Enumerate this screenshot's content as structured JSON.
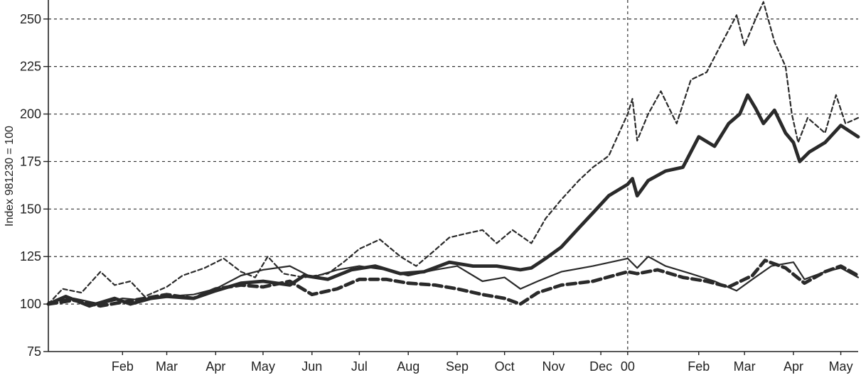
{
  "chart_data": {
    "type": "line",
    "title": "",
    "xlabel": "",
    "ylabel": "Index 981230 = 100",
    "ylim": [
      75,
      260
    ],
    "yticks": [
      75,
      100,
      125,
      150,
      175,
      200,
      225,
      250
    ],
    "xlim": [
      "1998-12-30",
      "2000-05-26"
    ],
    "xticks": [
      {
        "label": "Feb",
        "date": "1999-02-15"
      },
      {
        "label": "Mar",
        "date": "1999-03-15"
      },
      {
        "label": "Apr",
        "date": "1999-04-15"
      },
      {
        "label": "May",
        "date": "1999-05-15"
      },
      {
        "label": "Jun",
        "date": "1999-06-15"
      },
      {
        "label": "Jul",
        "date": "1999-07-15"
      },
      {
        "label": "Aug",
        "date": "1999-08-15"
      },
      {
        "label": "Sep",
        "date": "1999-09-15"
      },
      {
        "label": "Oct",
        "date": "1999-10-15"
      },
      {
        "label": "Nov",
        "date": "1999-11-15"
      },
      {
        "label": "Dec",
        "date": "1999-12-15"
      },
      {
        "label": "00",
        "date": "2000-01-01"
      },
      {
        "label": "Feb",
        "date": "2000-02-15"
      },
      {
        "label": "Mar",
        "date": "2000-03-15"
      },
      {
        "label": "Apr",
        "date": "2000-04-15"
      },
      {
        "label": "May",
        "date": "2000-05-15"
      }
    ],
    "vline": "2000-01-01",
    "grid": true,
    "series": [
      {
        "style": "thin-dashed",
        "color": "#2a2a2a",
        "points": [
          [
            "1998-12-30",
            100
          ],
          [
            "1999-01-08",
            108
          ],
          [
            "1999-01-20",
            106
          ],
          [
            "1999-02-01",
            117
          ],
          [
            "1999-02-10",
            110
          ],
          [
            "1999-02-20",
            112
          ],
          [
            "1999-03-01",
            104
          ],
          [
            "1999-03-15",
            109
          ],
          [
            "1999-03-25",
            115
          ],
          [
            "1999-04-08",
            119
          ],
          [
            "1999-04-20",
            124
          ],
          [
            "1999-05-01",
            117
          ],
          [
            "1999-05-10",
            114
          ],
          [
            "1999-05-18",
            125
          ],
          [
            "1999-05-28",
            116
          ],
          [
            "1999-06-10",
            114
          ],
          [
            "1999-06-25",
            116
          ],
          [
            "1999-07-05",
            122
          ],
          [
            "1999-07-15",
            129
          ],
          [
            "1999-07-28",
            134
          ],
          [
            "1999-08-10",
            125
          ],
          [
            "1999-08-20",
            120
          ],
          [
            "1999-08-30",
            127
          ],
          [
            "1999-09-10",
            135
          ],
          [
            "1999-09-20",
            137
          ],
          [
            "1999-10-01",
            139
          ],
          [
            "1999-10-10",
            132
          ],
          [
            "1999-10-20",
            139
          ],
          [
            "1999-11-01",
            132
          ],
          [
            "1999-11-10",
            145
          ],
          [
            "1999-11-20",
            155
          ],
          [
            "1999-12-01",
            165
          ],
          [
            "1999-12-10",
            172
          ],
          [
            "1999-12-20",
            178
          ],
          [
            "2000-01-01",
            200
          ],
          [
            "2000-01-04",
            208
          ],
          [
            "2000-01-07",
            186
          ],
          [
            "2000-01-14",
            200
          ],
          [
            "2000-01-22",
            212
          ],
          [
            "2000-02-01",
            195
          ],
          [
            "2000-02-10",
            218
          ],
          [
            "2000-02-20",
            222
          ],
          [
            "2000-03-01",
            238
          ],
          [
            "2000-03-10",
            252
          ],
          [
            "2000-03-15",
            236
          ],
          [
            "2000-03-22",
            250
          ],
          [
            "2000-03-27",
            259
          ],
          [
            "2000-04-03",
            238
          ],
          [
            "2000-04-10",
            225
          ],
          [
            "2000-04-14",
            200
          ],
          [
            "2000-04-18",
            185
          ],
          [
            "2000-04-24",
            198
          ],
          [
            "2000-05-05",
            190
          ],
          [
            "2000-05-12",
            210
          ],
          [
            "2000-05-18",
            195
          ],
          [
            "2000-05-26",
            198
          ]
        ]
      },
      {
        "style": "thick-solid",
        "color": "#2a2a2a",
        "points": [
          [
            "1998-12-30",
            100
          ],
          [
            "1999-01-10",
            104
          ],
          [
            "1999-01-25",
            99
          ],
          [
            "1999-02-10",
            103
          ],
          [
            "1999-02-20",
            100
          ],
          [
            "1999-03-05",
            103
          ],
          [
            "1999-03-15",
            104
          ],
          [
            "1999-04-01",
            103
          ],
          [
            "1999-04-15",
            107
          ],
          [
            "1999-05-01",
            111
          ],
          [
            "1999-05-15",
            112
          ],
          [
            "1999-06-01",
            110
          ],
          [
            "1999-06-10",
            115
          ],
          [
            "1999-06-25",
            113
          ],
          [
            "1999-07-10",
            118
          ],
          [
            "1999-07-25",
            120
          ],
          [
            "1999-08-10",
            116
          ],
          [
            "1999-08-25",
            117
          ],
          [
            "1999-09-10",
            122
          ],
          [
            "1999-09-25",
            120
          ],
          [
            "1999-10-10",
            120
          ],
          [
            "1999-10-25",
            118
          ],
          [
            "1999-11-01",
            119
          ],
          [
            "1999-11-10",
            124
          ],
          [
            "1999-11-20",
            130
          ],
          [
            "1999-12-01",
            140
          ],
          [
            "1999-12-10",
            148
          ],
          [
            "1999-12-20",
            157
          ],
          [
            "2000-01-01",
            163
          ],
          [
            "2000-01-04",
            166
          ],
          [
            "2000-01-07",
            157
          ],
          [
            "2000-01-14",
            165
          ],
          [
            "2000-01-25",
            170
          ],
          [
            "2000-02-05",
            172
          ],
          [
            "2000-02-15",
            188
          ],
          [
            "2000-02-25",
            183
          ],
          [
            "2000-03-05",
            195
          ],
          [
            "2000-03-12",
            200
          ],
          [
            "2000-03-17",
            210
          ],
          [
            "2000-03-22",
            203
          ],
          [
            "2000-03-27",
            195
          ],
          [
            "2000-04-03",
            202
          ],
          [
            "2000-04-10",
            190
          ],
          [
            "2000-04-15",
            185
          ],
          [
            "2000-04-19",
            175
          ],
          [
            "2000-04-25",
            180
          ],
          [
            "2000-05-05",
            185
          ],
          [
            "2000-05-15",
            194
          ],
          [
            "2000-05-26",
            188
          ]
        ]
      },
      {
        "style": "thin-solid",
        "color": "#2a2a2a",
        "points": [
          [
            "1998-12-30",
            101
          ],
          [
            "1999-01-15",
            103
          ],
          [
            "1999-02-01",
            100
          ],
          [
            "1999-02-15",
            103
          ],
          [
            "1999-03-01",
            102
          ],
          [
            "1999-03-15",
            104
          ],
          [
            "1999-04-01",
            105
          ],
          [
            "1999-04-15",
            108
          ],
          [
            "1999-05-01",
            115
          ],
          [
            "1999-05-15",
            118
          ],
          [
            "1999-06-01",
            120
          ],
          [
            "1999-06-15",
            114
          ],
          [
            "1999-07-01",
            118
          ],
          [
            "1999-07-15",
            120
          ],
          [
            "1999-08-01",
            118
          ],
          [
            "1999-08-15",
            115
          ],
          [
            "1999-09-01",
            118
          ],
          [
            "1999-09-15",
            120
          ],
          [
            "1999-10-01",
            112
          ],
          [
            "1999-10-15",
            114
          ],
          [
            "1999-10-25",
            108
          ],
          [
            "1999-11-05",
            112
          ],
          [
            "1999-11-20",
            117
          ],
          [
            "1999-12-10",
            120
          ],
          [
            "2000-01-01",
            124
          ],
          [
            "2000-01-07",
            119
          ],
          [
            "2000-01-14",
            125
          ],
          [
            "2000-01-25",
            120
          ],
          [
            "2000-02-10",
            116
          ],
          [
            "2000-02-25",
            112
          ],
          [
            "2000-03-10",
            107
          ],
          [
            "2000-03-20",
            113
          ],
          [
            "2000-04-01",
            120
          ],
          [
            "2000-04-15",
            122
          ],
          [
            "2000-04-22",
            113
          ],
          [
            "2000-05-05",
            117
          ],
          [
            "2000-05-15",
            119
          ],
          [
            "2000-05-26",
            114
          ]
        ]
      },
      {
        "style": "thick-dashed",
        "color": "#2a2a2a",
        "points": [
          [
            "1998-12-30",
            100
          ],
          [
            "1999-01-15",
            102
          ],
          [
            "1999-02-01",
            99
          ],
          [
            "1999-02-15",
            101
          ],
          [
            "1999-03-01",
            103
          ],
          [
            "1999-03-15",
            105
          ],
          [
            "1999-04-01",
            103
          ],
          [
            "1999-04-15",
            108
          ],
          [
            "1999-05-01",
            110
          ],
          [
            "1999-05-15",
            109
          ],
          [
            "1999-06-01",
            112
          ],
          [
            "1999-06-15",
            105
          ],
          [
            "1999-07-01",
            108
          ],
          [
            "1999-07-15",
            113
          ],
          [
            "1999-08-01",
            113
          ],
          [
            "1999-08-15",
            111
          ],
          [
            "1999-09-01",
            110
          ],
          [
            "1999-09-15",
            108
          ],
          [
            "1999-10-01",
            105
          ],
          [
            "1999-10-15",
            103
          ],
          [
            "1999-10-25",
            100
          ],
          [
            "1999-11-05",
            106
          ],
          [
            "1999-11-20",
            110
          ],
          [
            "1999-12-10",
            112
          ],
          [
            "2000-01-01",
            117
          ],
          [
            "2000-01-07",
            116
          ],
          [
            "2000-01-20",
            118
          ],
          [
            "2000-02-05",
            114
          ],
          [
            "2000-02-20",
            112
          ],
          [
            "2000-03-05",
            109
          ],
          [
            "2000-03-20",
            115
          ],
          [
            "2000-03-28",
            123
          ],
          [
            "2000-04-10",
            119
          ],
          [
            "2000-04-22",
            111
          ],
          [
            "2000-05-05",
            117
          ],
          [
            "2000-05-15",
            120
          ],
          [
            "2000-05-26",
            115
          ]
        ]
      }
    ]
  }
}
